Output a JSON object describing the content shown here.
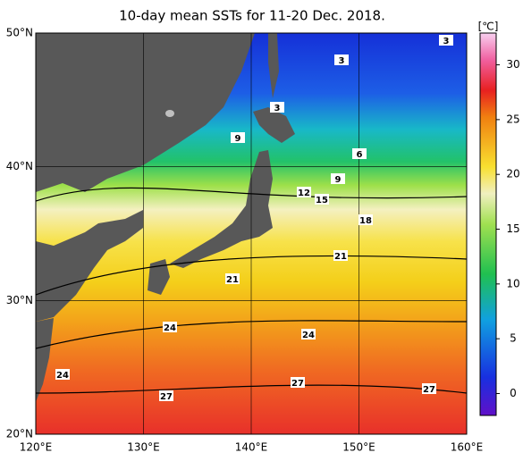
{
  "title": "10-day mean SSTs for 11-20 Dec. 2018.",
  "map": {
    "lon_range": [
      120,
      160
    ],
    "lat_range": [
      20,
      50
    ],
    "lon_ticks": [
      {
        "value": 120,
        "label": "120°E"
      },
      {
        "value": 130,
        "label": "130°E"
      },
      {
        "value": 140,
        "label": "140°E"
      },
      {
        "value": 150,
        "label": "150°E"
      },
      {
        "value": 160,
        "label": "160°E"
      }
    ],
    "lat_ticks": [
      {
        "value": 20,
        "label": "20°N"
      },
      {
        "value": 30,
        "label": "30°N"
      },
      {
        "value": 40,
        "label": "40°N"
      },
      {
        "value": 50,
        "label": "50°N"
      }
    ],
    "contour_labels": [
      3,
      3,
      3,
      9,
      6,
      9,
      12,
      15,
      18,
      21,
      21,
      24,
      24,
      24,
      27,
      27,
      27
    ]
  },
  "colorbar": {
    "unit": "[℃]",
    "range": [
      -2,
      32.9
    ],
    "ticks": [
      0,
      5,
      10,
      15,
      20,
      25,
      30
    ]
  }
}
